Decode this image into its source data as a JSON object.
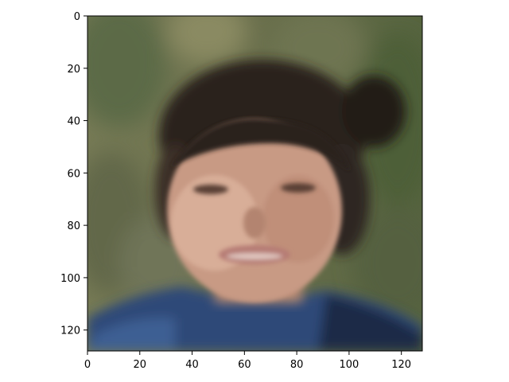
{
  "image": {
    "description_of_content": "blurry face",
    "axes": {
      "x_ticks": [
        "0",
        "20",
        "40",
        "60",
        "80",
        "100",
        "120"
      ],
      "y_ticks": [
        "0",
        "20",
        "40",
        "60",
        "80",
        "100",
        "120"
      ],
      "x_range": [
        0,
        128
      ],
      "y_range": [
        0,
        128
      ],
      "y_inverted": true
    },
    "colors": {
      "background_top": "#6f7750",
      "background_left": "#6e7552",
      "background_right": "#5f6b45",
      "hair": "#2a221d",
      "skin": "#c89a84",
      "skin_light": "#d8ae98",
      "lips": "#b67c74",
      "shirt": "#2f4a78",
      "shirt_dark": "#1f2c46"
    }
  }
}
